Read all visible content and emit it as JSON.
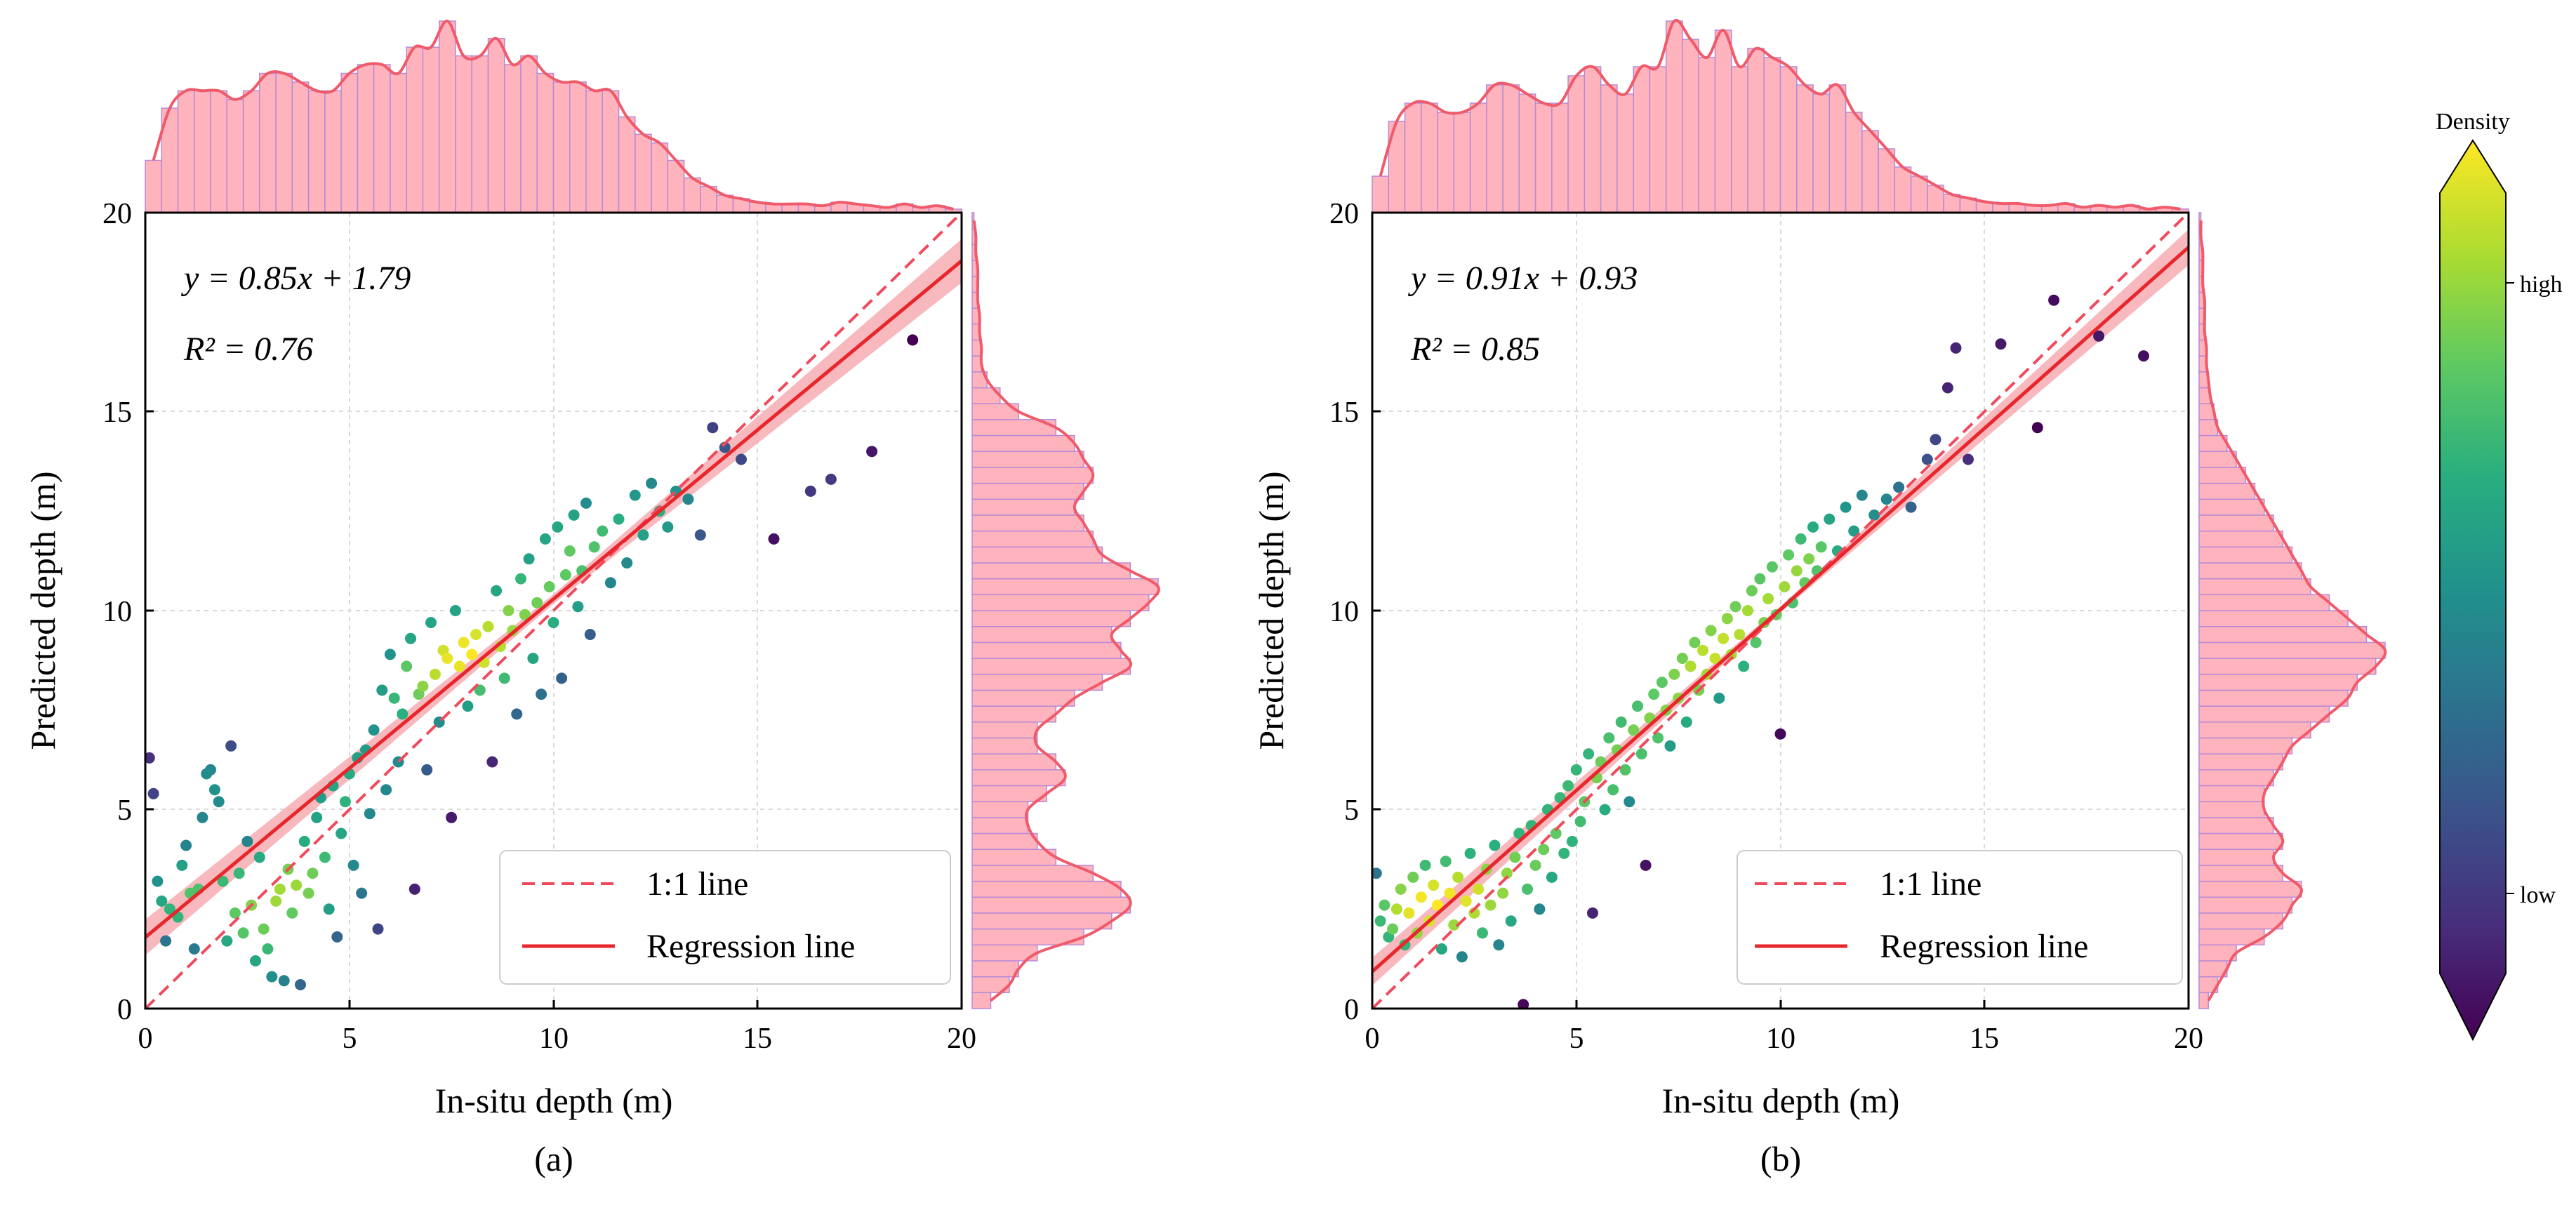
{
  "colors": {
    "regression": "#e8262b",
    "identity": "#f04a5d",
    "band": "#f6a2a8",
    "hist_fill": "#ffb3bc",
    "hist_edge": "#b58ad8",
    "kde": "#ef5b6a",
    "grid": "#d9d9d9"
  },
  "colorbar": {
    "title": "Density",
    "high_label": "high",
    "low_label": "low",
    "colormap": "viridis"
  },
  "legend": {
    "identity_label": "1:1 line",
    "regression_label": "Regression line"
  },
  "chart_data": [
    {
      "type": "scatter",
      "panel_label": "(a)",
      "xlabel": "In-situ depth (m)",
      "ylabel": "Predicted depth (m)",
      "xlim": [
        0,
        20
      ],
      "ylim": [
        0,
        20
      ],
      "xticks": [
        "0",
        "5",
        "10",
        "15",
        "20"
      ],
      "yticks": [
        "0",
        "5",
        "10",
        "15",
        "20"
      ],
      "equation": "y = 0.85x + 1.79",
      "r2_text": "R² = 0.76",
      "slope": 0.85,
      "intercept": 1.79,
      "band_halfwidth": [
        0.45,
        0.12,
        0.55
      ],
      "points": [
        [
          0.1,
          6.3
        ],
        [
          0.2,
          5.4
        ],
        [
          0.3,
          3.2
        ],
        [
          0.4,
          2.7
        ],
        [
          0.5,
          1.7
        ],
        [
          0.6,
          2.5
        ],
        [
          0.8,
          2.3
        ],
        [
          0.9,
          3.6
        ],
        [
          1.0,
          4.1
        ],
        [
          1.1,
          2.9
        ],
        [
          1.2,
          1.5
        ],
        [
          1.3,
          3.0
        ],
        [
          1.4,
          4.8
        ],
        [
          1.5,
          5.9
        ],
        [
          1.6,
          6.0
        ],
        [
          1.7,
          5.5
        ],
        [
          1.8,
          5.2
        ],
        [
          1.9,
          3.2
        ],
        [
          2.0,
          1.7
        ],
        [
          2.1,
          6.6
        ],
        [
          2.2,
          2.4
        ],
        [
          2.3,
          3.4
        ],
        [
          2.4,
          1.9
        ],
        [
          2.5,
          4.2
        ],
        [
          2.6,
          2.6
        ],
        [
          2.7,
          1.2
        ],
        [
          2.8,
          3.8
        ],
        [
          2.9,
          2.0
        ],
        [
          3.0,
          1.5
        ],
        [
          3.1,
          0.8
        ],
        [
          3.2,
          2.7
        ],
        [
          3.3,
          3.0
        ],
        [
          3.4,
          0.7
        ],
        [
          3.5,
          3.5
        ],
        [
          3.6,
          2.4
        ],
        [
          3.7,
          3.1
        ],
        [
          3.8,
          0.6
        ],
        [
          3.9,
          4.2
        ],
        [
          4.0,
          2.9
        ],
        [
          4.1,
          3.4
        ],
        [
          4.2,
          4.8
        ],
        [
          4.3,
          5.3
        ],
        [
          4.4,
          3.8
        ],
        [
          4.5,
          2.5
        ],
        [
          4.6,
          5.6
        ],
        [
          4.7,
          1.8
        ],
        [
          4.8,
          4.4
        ],
        [
          4.9,
          5.2
        ],
        [
          5.0,
          5.9
        ],
        [
          5.1,
          3.6
        ],
        [
          5.2,
          6.3
        ],
        [
          5.3,
          2.9
        ],
        [
          5.4,
          6.5
        ],
        [
          5.5,
          4.9
        ],
        [
          5.6,
          7.0
        ],
        [
          5.7,
          2.0
        ],
        [
          5.8,
          8.0
        ],
        [
          5.9,
          5.5
        ],
        [
          6.0,
          8.9
        ],
        [
          6.1,
          7.8
        ],
        [
          6.2,
          6.2
        ],
        [
          6.3,
          7.4
        ],
        [
          6.4,
          8.6
        ],
        [
          6.5,
          9.3
        ],
        [
          6.6,
          3.0
        ],
        [
          6.7,
          7.9
        ],
        [
          6.8,
          8.1
        ],
        [
          6.9,
          6.0
        ],
        [
          7.0,
          9.7
        ],
        [
          7.1,
          8.4
        ],
        [
          7.2,
          7.2
        ],
        [
          7.3,
          9.0
        ],
        [
          7.4,
          8.8
        ],
        [
          7.5,
          4.8
        ],
        [
          7.6,
          10.0
        ],
        [
          7.7,
          8.6
        ],
        [
          7.8,
          9.2
        ],
        [
          7.9,
          7.6
        ],
        [
          8.0,
          8.9
        ],
        [
          8.1,
          9.4
        ],
        [
          8.2,
          8.0
        ],
        [
          8.3,
          8.7
        ],
        [
          8.4,
          9.6
        ],
        [
          8.5,
          6.2
        ],
        [
          8.6,
          10.5
        ],
        [
          8.7,
          9.1
        ],
        [
          8.8,
          8.3
        ],
        [
          8.9,
          10.0
        ],
        [
          9.0,
          9.5
        ],
        [
          9.1,
          7.4
        ],
        [
          9.2,
          10.8
        ],
        [
          9.3,
          9.9
        ],
        [
          9.4,
          11.3
        ],
        [
          9.5,
          8.8
        ],
        [
          9.6,
          10.2
        ],
        [
          9.7,
          7.9
        ],
        [
          9.8,
          11.8
        ],
        [
          9.9,
          10.6
        ],
        [
          10.0,
          9.7
        ],
        [
          10.1,
          12.1
        ],
        [
          10.2,
          8.3
        ],
        [
          10.3,
          10.9
        ],
        [
          10.4,
          11.5
        ],
        [
          10.5,
          12.4
        ],
        [
          10.6,
          10.1
        ],
        [
          10.7,
          11.0
        ],
        [
          10.8,
          12.7
        ],
        [
          10.9,
          9.4
        ],
        [
          11.0,
          11.6
        ],
        [
          11.2,
          12.0
        ],
        [
          11.4,
          10.7
        ],
        [
          11.6,
          12.3
        ],
        [
          11.8,
          11.2
        ],
        [
          12.0,
          12.9
        ],
        [
          12.2,
          11.9
        ],
        [
          12.4,
          13.2
        ],
        [
          12.6,
          12.5
        ],
        [
          12.8,
          12.1
        ],
        [
          13.0,
          13.0
        ],
        [
          13.3,
          12.8
        ],
        [
          13.6,
          11.9
        ],
        [
          13.9,
          14.6
        ],
        [
          14.2,
          14.1
        ],
        [
          14.6,
          13.8
        ],
        [
          15.4,
          11.8
        ],
        [
          16.3,
          13.0
        ],
        [
          16.8,
          13.3
        ],
        [
          17.8,
          14.0
        ],
        [
          18.8,
          16.8
        ]
      ],
      "hist_x": [
        0.3,
        0.6,
        0.7,
        0.7,
        0.7,
        0.65,
        0.7,
        0.8,
        0.8,
        0.75,
        0.7,
        0.7,
        0.8,
        0.85,
        0.85,
        0.8,
        0.95,
        0.95,
        1.1,
        0.9,
        0.9,
        1.0,
        0.85,
        0.9,
        0.8,
        0.75,
        0.75,
        0.7,
        0.7,
        0.55,
        0.45,
        0.4,
        0.3,
        0.2,
        0.15,
        0.1,
        0.08,
        0.06,
        0.05,
        0.05,
        0.05,
        0.04,
        0.06,
        0.05,
        0.04,
        0.03,
        0.05,
        0.03,
        0.04,
        0.02
      ],
      "hist_y": [
        0.1,
        0.2,
        0.25,
        0.35,
        0.6,
        0.75,
        0.85,
        0.8,
        0.65,
        0.45,
        0.35,
        0.3,
        0.3,
        0.4,
        0.5,
        0.45,
        0.35,
        0.35,
        0.45,
        0.55,
        0.7,
        0.85,
        0.8,
        0.75,
        0.85,
        0.95,
        1.0,
        0.85,
        0.7,
        0.65,
        0.6,
        0.55,
        0.6,
        0.65,
        0.6,
        0.55,
        0.45,
        0.25,
        0.15,
        0.08,
        0.05,
        0.05,
        0.04,
        0.04,
        0.03,
        0.03,
        0.03,
        0.02,
        0.02,
        0.01
      ]
    },
    {
      "type": "scatter",
      "panel_label": "(b)",
      "xlabel": "In-situ depth (m)",
      "ylabel": "Predicted depth (m)",
      "xlim": [
        0,
        20
      ],
      "ylim": [
        0,
        20
      ],
      "xticks": [
        "0",
        "5",
        "10",
        "15",
        "20"
      ],
      "yticks": [
        "0",
        "5",
        "10",
        "15",
        "20"
      ],
      "equation": "y = 0.91x + 0.93",
      "r2_text": "R² = 0.85",
      "slope": 0.91,
      "intercept": 0.93,
      "band_halfwidth": [
        0.35,
        0.08,
        0.45
      ],
      "points": [
        [
          0.1,
          3.4
        ],
        [
          0.2,
          2.2
        ],
        [
          0.3,
          2.6
        ],
        [
          0.4,
          1.8
        ],
        [
          0.5,
          2.0
        ],
        [
          0.6,
          2.5
        ],
        [
          0.7,
          3.0
        ],
        [
          0.8,
          1.6
        ],
        [
          0.9,
          2.4
        ],
        [
          1.0,
          3.3
        ],
        [
          1.1,
          1.9
        ],
        [
          1.2,
          2.8
        ],
        [
          1.3,
          3.6
        ],
        [
          1.4,
          2.2
        ],
        [
          1.5,
          3.1
        ],
        [
          1.6,
          2.6
        ],
        [
          1.7,
          1.5
        ],
        [
          1.8,
          3.7
        ],
        [
          1.9,
          2.9
        ],
        [
          2.0,
          2.1
        ],
        [
          2.1,
          3.3
        ],
        [
          2.2,
          1.3
        ],
        [
          2.3,
          2.7
        ],
        [
          2.4,
          3.9
        ],
        [
          2.5,
          2.4
        ],
        [
          2.6,
          3.0
        ],
        [
          2.7,
          1.9
        ],
        [
          2.8,
          3.5
        ],
        [
          2.9,
          2.6
        ],
        [
          3.0,
          4.1
        ],
        [
          3.1,
          1.6
        ],
        [
          3.2,
          2.9
        ],
        [
          3.3,
          3.4
        ],
        [
          3.4,
          2.2
        ],
        [
          3.5,
          3.8
        ],
        [
          3.6,
          4.4
        ],
        [
          3.7,
          0.1
        ],
        [
          3.8,
          3.0
        ],
        [
          3.9,
          4.6
        ],
        [
          4.0,
          3.6
        ],
        [
          4.1,
          2.5
        ],
        [
          4.2,
          4.0
        ],
        [
          4.3,
          5.0
        ],
        [
          4.4,
          3.3
        ],
        [
          4.5,
          4.4
        ],
        [
          4.6,
          5.3
        ],
        [
          4.7,
          3.9
        ],
        [
          4.8,
          5.6
        ],
        [
          4.9,
          4.2
        ],
        [
          5.0,
          6.0
        ],
        [
          5.1,
          4.7
        ],
        [
          5.2,
          5.2
        ],
        [
          5.3,
          6.4
        ],
        [
          5.4,
          2.4
        ],
        [
          5.5,
          5.8
        ],
        [
          5.6,
          6.2
        ],
        [
          5.7,
          5.0
        ],
        [
          5.8,
          6.8
        ],
        [
          5.9,
          5.5
        ],
        [
          6.0,
          6.5
        ],
        [
          6.1,
          7.2
        ],
        [
          6.2,
          6.0
        ],
        [
          6.3,
          5.2
        ],
        [
          6.4,
          7.0
        ],
        [
          6.5,
          7.6
        ],
        [
          6.6,
          6.4
        ],
        [
          6.7,
          3.6
        ],
        [
          6.8,
          7.3
        ],
        [
          6.9,
          7.9
        ],
        [
          7.0,
          6.8
        ],
        [
          7.1,
          8.2
        ],
        [
          7.2,
          7.5
        ],
        [
          7.3,
          6.6
        ],
        [
          7.4,
          8.4
        ],
        [
          7.5,
          7.8
        ],
        [
          7.6,
          8.8
        ],
        [
          7.7,
          7.2
        ],
        [
          7.8,
          8.6
        ],
        [
          7.9,
          9.2
        ],
        [
          8.0,
          8.0
        ],
        [
          8.1,
          9.0
        ],
        [
          8.2,
          8.4
        ],
        [
          8.3,
          9.5
        ],
        [
          8.4,
          8.8
        ],
        [
          8.5,
          7.8
        ],
        [
          8.6,
          9.3
        ],
        [
          8.7,
          9.8
        ],
        [
          8.8,
          8.9
        ],
        [
          8.9,
          10.1
        ],
        [
          9.0,
          9.4
        ],
        [
          9.1,
          8.6
        ],
        [
          9.2,
          10.0
        ],
        [
          9.3,
          10.5
        ],
        [
          9.4,
          9.2
        ],
        [
          9.5,
          10.8
        ],
        [
          9.6,
          9.7
        ],
        [
          9.7,
          10.3
        ],
        [
          9.8,
          11.1
        ],
        [
          9.9,
          9.9
        ],
        [
          10.0,
          6.9
        ],
        [
          10.1,
          10.6
        ],
        [
          10.2,
          11.4
        ],
        [
          10.3,
          10.2
        ],
        [
          10.4,
          11.0
        ],
        [
          10.5,
          11.8
        ],
        [
          10.6,
          10.7
        ],
        [
          10.7,
          11.3
        ],
        [
          10.8,
          12.1
        ],
        [
          10.9,
          11.0
        ],
        [
          11.0,
          11.6
        ],
        [
          11.2,
          12.3
        ],
        [
          11.4,
          11.5
        ],
        [
          11.6,
          12.6
        ],
        [
          11.8,
          12.0
        ],
        [
          12.0,
          12.9
        ],
        [
          12.3,
          12.4
        ],
        [
          12.6,
          12.8
        ],
        [
          12.9,
          13.1
        ],
        [
          13.2,
          12.6
        ],
        [
          13.6,
          13.8
        ],
        [
          13.8,
          14.3
        ],
        [
          14.1,
          15.6
        ],
        [
          14.3,
          16.6
        ],
        [
          14.6,
          13.8
        ],
        [
          15.4,
          16.7
        ],
        [
          16.3,
          14.6
        ],
        [
          16.7,
          17.8
        ],
        [
          17.8,
          16.9
        ],
        [
          18.9,
          16.4
        ]
      ],
      "hist_x": [
        0.2,
        0.5,
        0.6,
        0.6,
        0.55,
        0.55,
        0.6,
        0.7,
        0.7,
        0.65,
        0.6,
        0.6,
        0.75,
        0.8,
        0.7,
        0.65,
        0.8,
        0.8,
        1.05,
        0.95,
        0.85,
        1.0,
        0.8,
        0.9,
        0.85,
        0.8,
        0.7,
        0.65,
        0.7,
        0.55,
        0.45,
        0.35,
        0.25,
        0.2,
        0.15,
        0.1,
        0.08,
        0.06,
        0.05,
        0.05,
        0.04,
        0.04,
        0.05,
        0.03,
        0.04,
        0.03,
        0.04,
        0.02,
        0.03,
        0.02
      ],
      "hist_y": [
        0.05,
        0.1,
        0.15,
        0.2,
        0.35,
        0.45,
        0.5,
        0.55,
        0.45,
        0.4,
        0.45,
        0.4,
        0.35,
        0.35,
        0.4,
        0.45,
        0.5,
        0.6,
        0.7,
        0.8,
        0.85,
        0.95,
        1.0,
        0.9,
        0.8,
        0.7,
        0.6,
        0.55,
        0.5,
        0.45,
        0.4,
        0.35,
        0.3,
        0.25,
        0.2,
        0.15,
        0.1,
        0.08,
        0.06,
        0.05,
        0.04,
        0.04,
        0.03,
        0.03,
        0.03,
        0.02,
        0.02,
        0.02,
        0.01,
        0.01
      ]
    }
  ]
}
